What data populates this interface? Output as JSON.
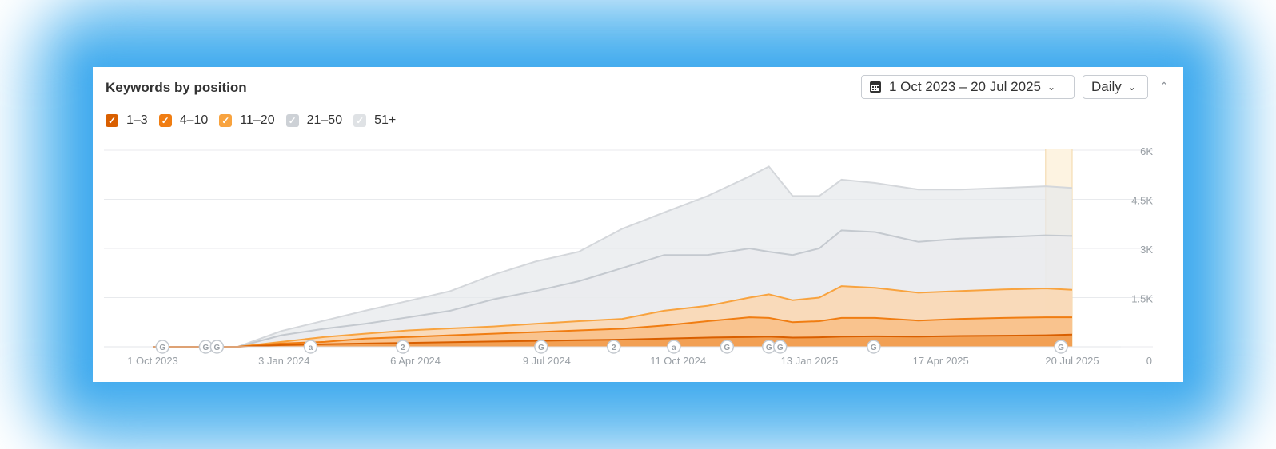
{
  "header": {
    "title": "Keywords by position",
    "date_range": "1 Oct 2023 – 20 Jul 2025",
    "granularity": "Daily"
  },
  "legend": [
    {
      "label": "1–3",
      "color": "#d95f00",
      "checked": true
    },
    {
      "label": "4–10",
      "color": "#f07d12",
      "checked": true
    },
    {
      "label": "11–20",
      "color": "#f8a33f",
      "checked": true
    },
    {
      "label": "21–50",
      "color": "#c4c9cf",
      "checked": true
    },
    {
      "label": "51+",
      "color": "#dadde1",
      "checked": true
    }
  ],
  "chart_data": {
    "type": "area",
    "stacked": true,
    "x": [
      "2023-10-01",
      "2023-11-01",
      "2023-12-01",
      "2024-01-01",
      "2024-02-01",
      "2024-03-01",
      "2024-04-01",
      "2024-05-01",
      "2024-06-01",
      "2024-07-01",
      "2024-08-01",
      "2024-09-01",
      "2024-10-01",
      "2024-11-01",
      "2024-12-01",
      "2024-12-15",
      "2025-01-01",
      "2025-01-20",
      "2025-02-05",
      "2025-03-01",
      "2025-04-01",
      "2025-05-01",
      "2025-06-01",
      "2025-07-01",
      "2025-07-20"
    ],
    "x_ticks": [
      "1 Oct 2023",
      "3 Jan 2024",
      "6 Apr 2024",
      "9 Jul 2024",
      "11 Oct 2024",
      "13 Jan 2025",
      "17 Apr 2025",
      "20 Jul 2025"
    ],
    "y_ticks": [
      "0",
      "1.5K",
      "3K",
      "4.5K",
      "6K"
    ],
    "ylim": [
      0,
      6000
    ],
    "series": [
      {
        "name": "1–3",
        "color": "#d95f00",
        "cumulative": [
          0,
          0,
          0,
          50,
          80,
          100,
          120,
          140,
          160,
          180,
          200,
          220,
          250,
          280,
          300,
          310,
          280,
          290,
          310,
          320,
          310,
          330,
          340,
          350,
          370
        ]
      },
      {
        "name": "4–10",
        "color": "#f07d12",
        "cumulative": [
          0,
          0,
          0,
          100,
          150,
          250,
          300,
          350,
          400,
          450,
          500,
          550,
          650,
          780,
          900,
          880,
          750,
          780,
          880,
          880,
          800,
          850,
          880,
          900,
          900
        ]
      },
      {
        "name": "11–20",
        "color": "#f8a33f",
        "cumulative": [
          0,
          0,
          0,
          150,
          300,
          400,
          500,
          560,
          620,
          700,
          780,
          850,
          1100,
          1250,
          1500,
          1600,
          1420,
          1500,
          1850,
          1800,
          1650,
          1700,
          1750,
          1780,
          1740
        ]
      },
      {
        "name": "21–50",
        "color": "#c4c9cf",
        "cumulative": [
          0,
          0,
          0,
          350,
          550,
          700,
          900,
          1100,
          1450,
          1700,
          2000,
          2400,
          2800,
          2800,
          3000,
          2900,
          2800,
          3000,
          3550,
          3500,
          3200,
          3300,
          3350,
          3400,
          3380
        ]
      },
      {
        "name": "51+",
        "color": "#dadde1",
        "cumulative": [
          0,
          0,
          0,
          480,
          800,
          1100,
          1400,
          1700,
          2200,
          2600,
          2900,
          3600,
          4100,
          4600,
          5200,
          5500,
          4600,
          4600,
          5100,
          5000,
          4800,
          4800,
          4850,
          4900,
          4850
        ]
      }
    ],
    "markers": [
      "G",
      "G",
      "G",
      "a",
      "2",
      "G",
      "2",
      "a",
      "G",
      "G",
      "G",
      "G",
      "G"
    ],
    "highlight_range": [
      "2025-07-01",
      "2025-07-20"
    ]
  }
}
